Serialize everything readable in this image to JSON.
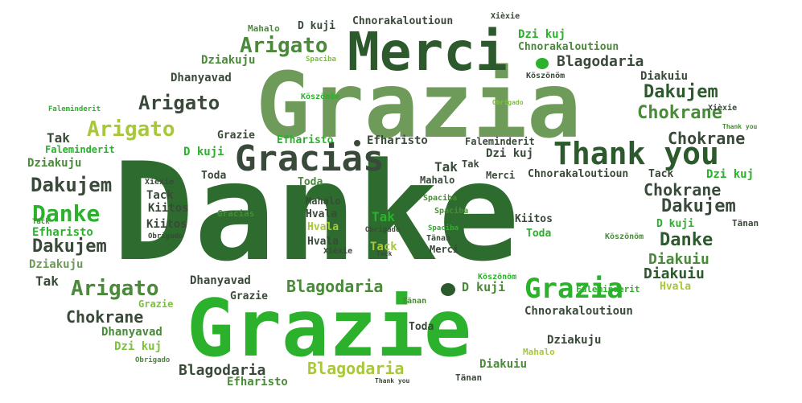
{
  "colors": {
    "dark": "#2e6b2e",
    "darker": "#2d5a2d",
    "mid": "#4a8a3a",
    "sage": "#6e9a5a",
    "bright": "#2bb12b",
    "lime": "#7cc23a",
    "yellow": "#a8c83a",
    "grey": "#3a4a3a"
  },
  "words": [
    {
      "text": "Danke"
    },
    {
      "text": "Grazia"
    },
    {
      "text": "Grazie"
    },
    {
      "text": "Merci"
    },
    {
      "text": "Gracias"
    },
    {
      "text": "Thank you"
    },
    {
      "text": "Grazia"
    },
    {
      "text": "Arigato"
    },
    {
      "text": "Arigato"
    },
    {
      "text": "Arigato"
    },
    {
      "text": "Arigato"
    },
    {
      "text": "Danke"
    },
    {
      "text": "Danke"
    },
    {
      "text": "Dakujem"
    },
    {
      "text": "Dakujem"
    },
    {
      "text": "Dakujem"
    },
    {
      "text": "Dakujem"
    },
    {
      "text": "Chokrane"
    },
    {
      "text": "Chokrane"
    },
    {
      "text": "Chokrane"
    },
    {
      "text": "Chokrane"
    },
    {
      "text": "Blagodaria"
    },
    {
      "text": "Blagodaria"
    },
    {
      "text": "Blagodaria"
    },
    {
      "text": "Blagodaria"
    },
    {
      "text": "Chnorakaloutioun"
    },
    {
      "text": "Chnorakaloutioun"
    },
    {
      "text": "Chnorakaloutioun"
    },
    {
      "text": "Chnorakaloutioun"
    },
    {
      "text": "Dziakuju"
    },
    {
      "text": "Dziakuju"
    },
    {
      "text": "Dziakuju"
    },
    {
      "text": "Dziakuju"
    },
    {
      "text": "Dhanyavad"
    },
    {
      "text": "Dhanyavad"
    },
    {
      "text": "Dhanyavad"
    },
    {
      "text": "Diakuiu"
    },
    {
      "text": "Diakuiu"
    },
    {
      "text": "Diakuiu"
    },
    {
      "text": "Diakuiu"
    },
    {
      "text": "Dzi kuj"
    },
    {
      "text": "Dzi kuj"
    },
    {
      "text": "Dzi kuj"
    },
    {
      "text": "Dzi kuj"
    },
    {
      "text": "D kuji"
    },
    {
      "text": "D kuji"
    },
    {
      "text": "D kuji"
    },
    {
      "text": "D kuji"
    },
    {
      "text": "Faleminderit"
    },
    {
      "text": "Faleminderit"
    },
    {
      "text": "Faleminderit"
    },
    {
      "text": "Faleminderit"
    },
    {
      "text": "Efharisto"
    },
    {
      "text": "Efharisto"
    },
    {
      "text": "Efharisto"
    },
    {
      "text": "Efharisto"
    },
    {
      "text": "Tak"
    },
    {
      "text": "Tak"
    },
    {
      "text": "Tak"
    },
    {
      "text": "Tak"
    },
    {
      "text": "Tack"
    },
    {
      "text": "Tack"
    },
    {
      "text": "Tack"
    },
    {
      "text": "Tack"
    },
    {
      "text": "Toda"
    },
    {
      "text": "Toda"
    },
    {
      "text": "Toda"
    },
    {
      "text": "Toda"
    },
    {
      "text": "Kiitos"
    },
    {
      "text": "Kiitos"
    },
    {
      "text": "Kiitos"
    },
    {
      "text": "Hvala"
    },
    {
      "text": "Hvala"
    },
    {
      "text": "Hvala"
    },
    {
      "text": "Hvala"
    },
    {
      "text": "Mahalo"
    },
    {
      "text": "Mahalo"
    },
    {
      "text": "Mahalo"
    },
    {
      "text": "Mahalo"
    },
    {
      "text": "Spaciba"
    },
    {
      "text": "Spaciba"
    },
    {
      "text": "Spaciba"
    },
    {
      "text": "Spaciba"
    },
    {
      "text": "Tänan"
    },
    {
      "text": "Tänan"
    },
    {
      "text": "Tänan"
    },
    {
      "text": "Tänan"
    },
    {
      "text": "Xièxie"
    },
    {
      "text": "Xièxie"
    },
    {
      "text": "Xièxie"
    },
    {
      "text": "Xièxie"
    },
    {
      "text": "Köszönöm"
    },
    {
      "text": "Köszönöm"
    },
    {
      "text": "Köszönöm"
    },
    {
      "text": "Köszönöm"
    },
    {
      "text": "Obrigado"
    },
    {
      "text": "Obrigado"
    },
    {
      "text": "Obrigado"
    },
    {
      "text": "Obrigado"
    },
    {
      "text": "Thank you"
    },
    {
      "text": "Thank you"
    },
    {
      "text": "Grazie"
    },
    {
      "text": "Grazie"
    },
    {
      "text": "Grazie"
    },
    {
      "text": "Gracias"
    },
    {
      "text": "Merci"
    },
    {
      "text": "Merci"
    },
    {
      "text": "Tak"
    },
    {
      "text": "Tack"
    }
  ]
}
